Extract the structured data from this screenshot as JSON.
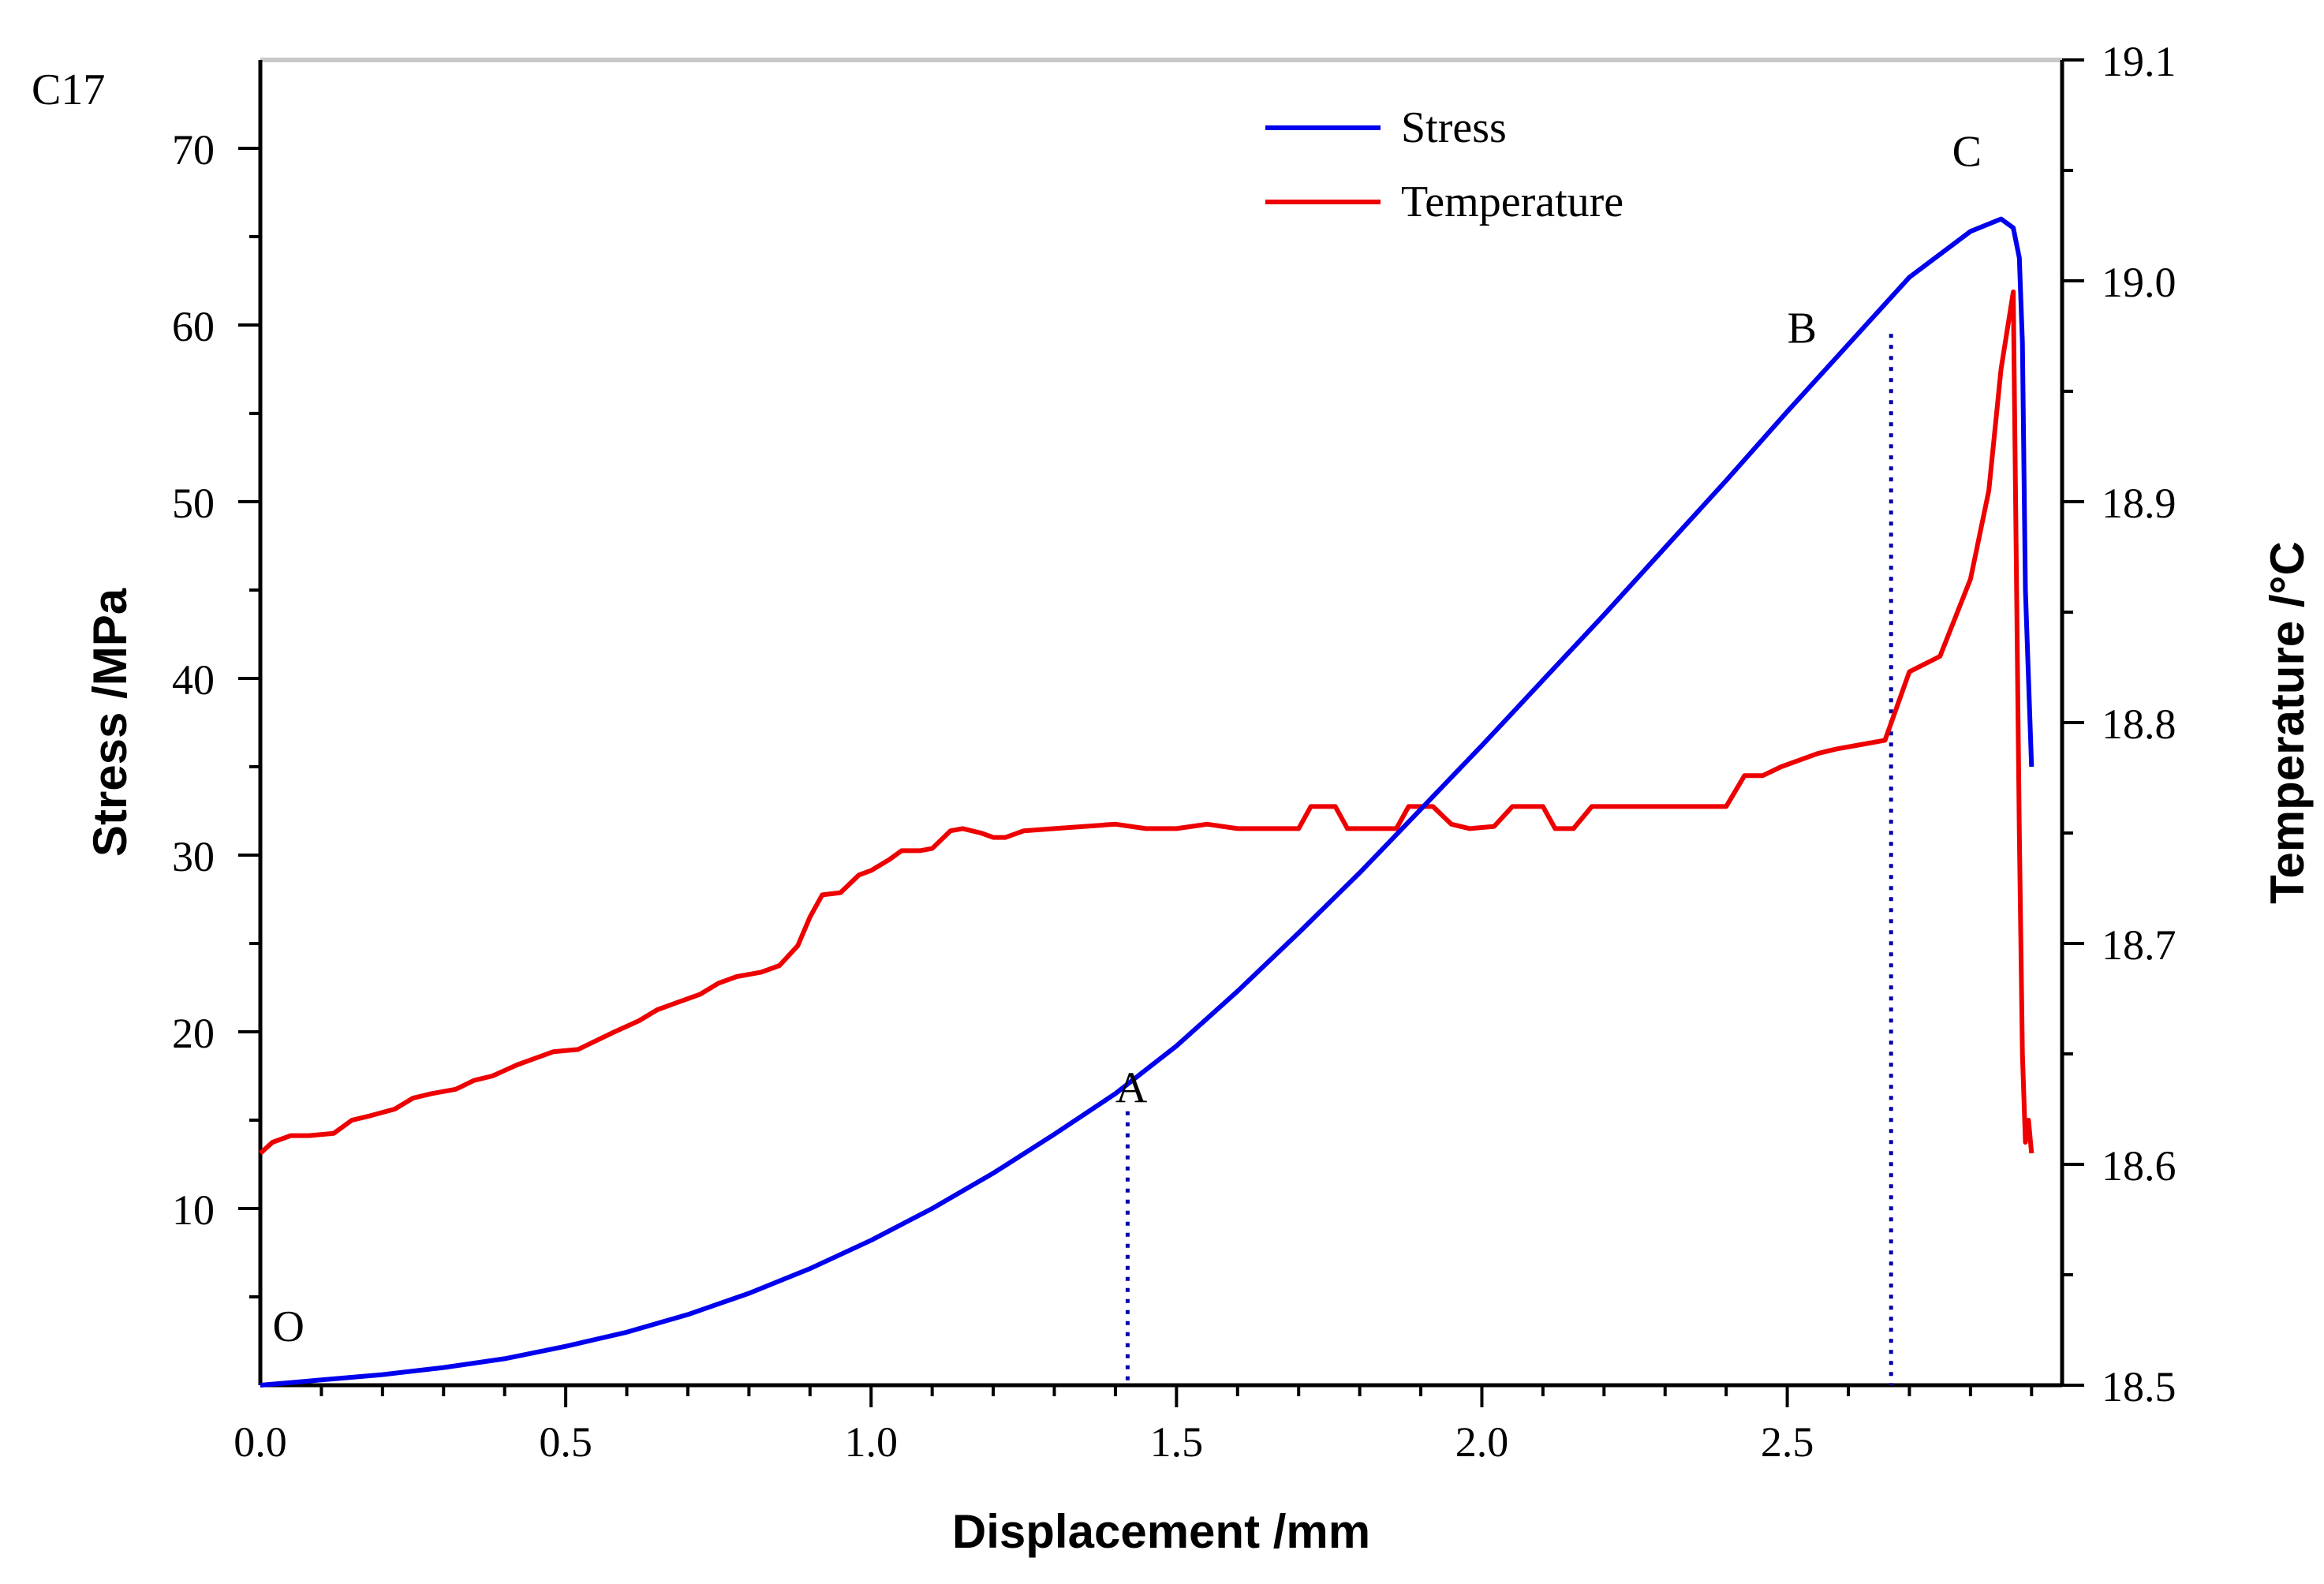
{
  "chart_data": {
    "type": "line",
    "panel_label": "C17",
    "xlabel": "Displacement /mm",
    "ylabel": "Stress /MPa",
    "y2label": "Temperature /°C",
    "xlim": [
      0,
      2.95
    ],
    "ylim": [
      0,
      75
    ],
    "y2lim": [
      18.5,
      19.1
    ],
    "x_ticks": [
      "0.0",
      "0.5",
      "1.0",
      "1.5",
      "2.0",
      "2.5"
    ],
    "y_ticks": [
      "10",
      "20",
      "30",
      "40",
      "50",
      "60",
      "70"
    ],
    "y2_ticks": [
      "18.5",
      "18.6",
      "18.7",
      "18.8",
      "18.9",
      "19.0",
      "19.1"
    ],
    "legend": {
      "position": "top-center",
      "entries": [
        "Stress",
        "Temperature"
      ]
    },
    "colors": {
      "stress": "#0000ee",
      "temperature": "#ee0000",
      "marker_lines": "#0000aa"
    },
    "series": [
      {
        "name": "Stress",
        "axis": "left",
        "x": [
          0,
          0.1,
          0.2,
          0.3,
          0.4,
          0.5,
          0.6,
          0.7,
          0.8,
          0.9,
          1.0,
          1.1,
          1.2,
          1.3,
          1.4,
          1.5,
          1.6,
          1.7,
          1.8,
          1.9,
          2.0,
          2.1,
          2.2,
          2.3,
          2.4,
          2.5,
          2.6,
          2.7,
          2.8,
          2.85,
          2.87,
          2.88,
          2.885,
          2.89,
          2.9
        ],
        "y": [
          0,
          0.3,
          0.6,
          1.0,
          1.5,
          2.2,
          3.0,
          4.0,
          5.2,
          6.6,
          8.2,
          10.0,
          12.0,
          14.2,
          16.5,
          19.2,
          22.3,
          25.6,
          29.0,
          32.6,
          36.2,
          39.9,
          43.6,
          47.4,
          51.2,
          55.1,
          58.9,
          62.7,
          65.3,
          66.0,
          65.5,
          63.8,
          59.0,
          45.0,
          35.0
        ]
      },
      {
        "name": "Temperature",
        "axis": "right",
        "x": [
          0,
          0.02,
          0.05,
          0.08,
          0.12,
          0.15,
          0.18,
          0.22,
          0.25,
          0.28,
          0.32,
          0.35,
          0.38,
          0.42,
          0.45,
          0.48,
          0.52,
          0.55,
          0.58,
          0.62,
          0.65,
          0.68,
          0.72,
          0.75,
          0.78,
          0.82,
          0.85,
          0.88,
          0.9,
          0.92,
          0.95,
          0.98,
          1.0,
          1.03,
          1.05,
          1.08,
          1.1,
          1.13,
          1.15,
          1.18,
          1.2,
          1.22,
          1.25,
          1.3,
          1.35,
          1.4,
          1.45,
          1.5,
          1.55,
          1.6,
          1.65,
          1.7,
          1.72,
          1.76,
          1.78,
          1.82,
          1.86,
          1.88,
          1.92,
          1.95,
          1.98,
          2.02,
          2.05,
          2.1,
          2.12,
          2.15,
          2.18,
          2.2,
          2.25,
          2.3,
          2.35,
          2.4,
          2.43,
          2.46,
          2.49,
          2.52,
          2.55,
          2.58,
          2.62,
          2.66,
          2.7,
          2.75,
          2.8,
          2.83,
          2.85,
          2.87,
          2.88,
          2.885,
          2.89,
          2.895,
          2.9
        ],
        "y": [
          18.605,
          18.61,
          18.613,
          18.613,
          18.614,
          18.62,
          18.622,
          18.625,
          18.63,
          18.632,
          18.634,
          18.638,
          18.64,
          18.645,
          18.648,
          18.651,
          18.652,
          18.656,
          18.66,
          18.665,
          18.67,
          18.673,
          18.677,
          18.682,
          18.685,
          18.687,
          18.69,
          18.699,
          18.712,
          18.722,
          18.723,
          18.731,
          18.733,
          18.738,
          18.742,
          18.742,
          18.743,
          18.751,
          18.752,
          18.75,
          18.748,
          18.748,
          18.751,
          18.752,
          18.753,
          18.754,
          18.752,
          18.752,
          18.754,
          18.752,
          18.752,
          18.752,
          18.762,
          18.762,
          18.752,
          18.752,
          18.752,
          18.762,
          18.762,
          18.754,
          18.752,
          18.753,
          18.762,
          18.762,
          18.752,
          18.752,
          18.762,
          18.762,
          18.762,
          18.762,
          18.762,
          18.762,
          18.776,
          18.776,
          18.78,
          18.783,
          18.786,
          18.788,
          18.79,
          18.792,
          18.823,
          18.83,
          18.865,
          18.905,
          18.96,
          18.995,
          18.75,
          18.65,
          18.61,
          18.62,
          18.605
        ]
      }
    ],
    "annotations": [
      {
        "label": "O",
        "x": 0.02,
        "y": 2.5
      },
      {
        "label": "A",
        "x": 1.4,
        "y": 16.0
      },
      {
        "label": "B",
        "x": 2.5,
        "y": 59.0
      },
      {
        "label": "C",
        "x": 2.77,
        "y": 69.0
      }
    ],
    "vertical_markers": [
      {
        "x": 1.42,
        "y_top": 15.5
      },
      {
        "x": 2.67,
        "y_top": 59.5
      }
    ]
  }
}
